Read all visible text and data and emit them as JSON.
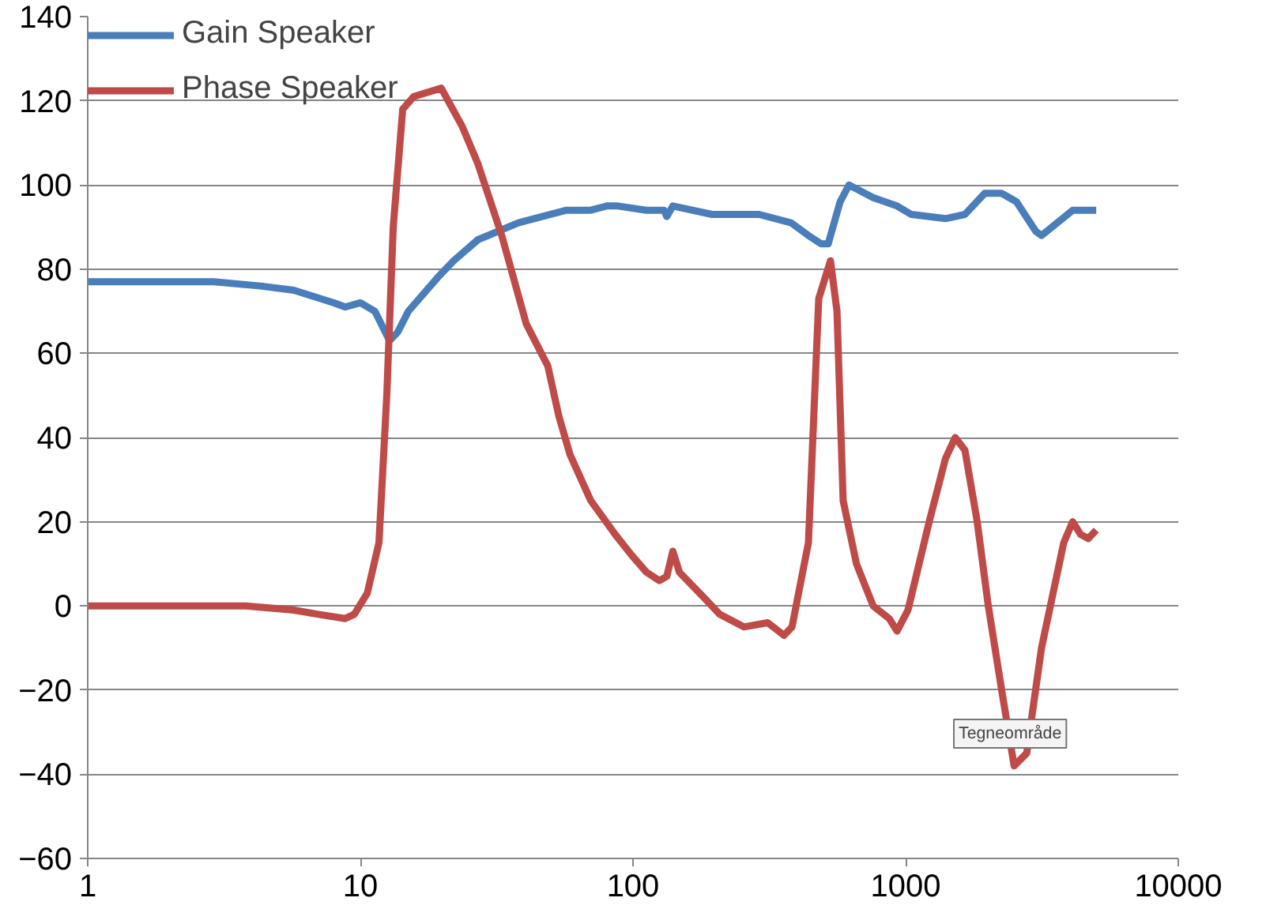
{
  "chart_data": {
    "type": "line",
    "log": "x",
    "xlim": [
      1,
      10000
    ],
    "xticks": [
      1,
      10,
      100,
      1000,
      10000
    ],
    "ylim": [
      -60,
      140
    ],
    "yticks": [
      -60,
      -40,
      -20,
      0,
      20,
      40,
      60,
      80,
      100,
      120,
      140
    ],
    "grid": "y",
    "legend": "top left",
    "line_style": "solid",
    "marker": "none",
    "annotations": [
      "Tegneområde"
    ],
    "series": [
      {
        "name": "Gain Speaker",
        "color": "#4a7ebb",
        "x": [
          1,
          2.9,
          4.3,
          5.7,
          8,
          8.8,
          10,
          11.3,
          12.8,
          13.7,
          15,
          19.2,
          22,
          27,
          38,
          57,
          70,
          80,
          88,
          112,
          130,
          133,
          140,
          195,
          290,
          380,
          440,
          490,
          520,
          575,
          620,
          760,
          930,
          1050,
          1400,
          1650,
          1950,
          2250,
          2550,
          3000,
          3150,
          4100,
          5000
        ],
        "values": [
          77,
          77,
          76,
          75,
          72,
          71,
          72,
          70,
          63,
          65,
          70,
          78,
          82,
          87,
          91,
          94,
          94,
          95,
          95,
          94,
          94,
          92.5,
          95,
          93,
          93,
          91,
          88,
          86,
          86,
          96,
          100,
          97,
          95,
          93,
          92,
          93,
          98,
          98,
          96,
          89,
          88,
          94,
          94
        ]
      },
      {
        "name": "Phase Speaker",
        "color": "#be4b48",
        "x": [
          1,
          3.8,
          5.7,
          7,
          8.8,
          9.5,
          10.6,
          11.7,
          12.5,
          13.2,
          14.3,
          15.7,
          19.8,
          23.6,
          27,
          33,
          40.6,
          48.7,
          53.5,
          58.7,
          70,
          86,
          99,
          112,
          125,
          133,
          140,
          148,
          182,
          208,
          255,
          312,
          358,
          383,
          440,
          480,
          530,
          560,
          590,
          660,
          760,
          870,
          930,
          1020,
          1220,
          1400,
          1520,
          1650,
          1830,
          2010,
          2250,
          2500,
          2780,
          3150,
          3800,
          4100,
          4380,
          4680,
          5000
        ],
        "values": [
          0,
          0,
          -1,
          -2,
          -3,
          -2,
          3,
          15,
          50,
          90,
          118,
          121,
          123,
          114,
          105,
          88,
          67,
          57,
          45,
          36,
          25,
          17,
          12,
          8,
          6,
          7,
          13,
          8,
          2,
          -2,
          -5,
          -4,
          -7,
          -5,
          15,
          73,
          82,
          70,
          25,
          10,
          0,
          -3,
          -6,
          -1,
          20,
          35,
          40,
          37,
          20,
          0,
          -20,
          -38,
          -35,
          -10,
          15,
          20,
          17,
          16,
          18
        ]
      }
    ]
  }
}
